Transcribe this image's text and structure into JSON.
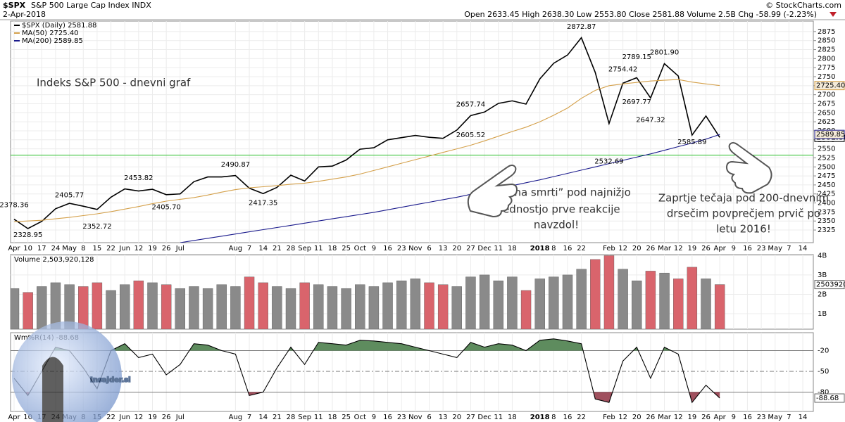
{
  "header": {
    "symbol": "$SPX",
    "name": "S&P 500 Large Cap Index INDX",
    "date": "2-Apr-2018",
    "ohlc": "Open 2633.45 High 2638.30 Low 2553.80 Close 2581.88 Volume 2.5B Chg -58.99 (-2.23%)",
    "copyright": "© StockCharts.com"
  },
  "callouts": {
    "title": "Indeks S&P 500 - dnevni graf",
    "zone": [
      "T.i “cona smrti” pod najnižjo",
      "vrednostjo prve reakcije",
      "navzdol!"
    ],
    "close": [
      "Zaprtje tečaja pod 200-dnevnim",
      "drsečim povprečjem prvič po",
      "letu 2016!"
    ]
  },
  "watermark": "Insajder.si",
  "chart_data": [
    {
      "type": "line",
      "categories": [
        "Apr",
        "10",
        "17",
        "24",
        "May",
        "8",
        "15",
        "22",
        "Jun",
        "12",
        "19",
        "26",
        "Jul",
        null,
        null,
        null,
        "Aug",
        "7",
        "14",
        "21",
        "28",
        "Sep",
        "11",
        "18",
        "25",
        "Oct",
        "9",
        "16",
        "23",
        "Nov",
        "6",
        "13",
        "20",
        "27",
        "Dec",
        "11",
        "18",
        null,
        "2018",
        "8",
        "16",
        "22",
        null,
        "Feb",
        "12",
        "20",
        "26",
        "Mar",
        "12",
        "19",
        "26",
        "Apr",
        "9",
        "16",
        "23",
        "May",
        "7",
        "14"
      ],
      "series": [
        {
          "name": "$SPX (Daily)",
          "color": "#000000",
          "values": [
            2355,
            2329,
            2349,
            2384,
            2399,
            2391,
            2382,
            2416,
            2439,
            2433,
            2438,
            2423,
            2425,
            2459,
            2472,
            2472,
            2476,
            2441,
            2426,
            2443,
            2477,
            2461,
            2500,
            2502,
            2519,
            2549,
            2553,
            2575,
            2581,
            2587,
            2582,
            2579,
            2602,
            2642,
            2652,
            2676,
            2683,
            2674,
            2744,
            2787,
            2810,
            2858,
            2762,
            2620,
            2732,
            2747,
            2691,
            2786,
            2752,
            2588,
            2641,
            2581.88,
            null,
            null,
            null,
            null,
            null,
            null
          ]
        },
        {
          "name": "MA(50)",
          "color": "#d4a04a",
          "last_label": "2725.40",
          "values": [
            2348,
            2350,
            2352,
            2356,
            2360,
            2365,
            2370,
            2376,
            2383,
            2390,
            2398,
            2405,
            2410,
            2415,
            2422,
            2430,
            2437,
            2442,
            2445,
            2448,
            2452,
            2455,
            2460,
            2466,
            2472,
            2480,
            2490,
            2500,
            2510,
            2520,
            2530,
            2540,
            2550,
            2560,
            2572,
            2585,
            2598,
            2610,
            2625,
            2643,
            2663,
            2690,
            2712,
            2725,
            2730,
            2734,
            2738,
            2740,
            2742,
            2735,
            2730,
            2725.4,
            null,
            null,
            null,
            null,
            null,
            null
          ]
        },
        {
          "name": "MA(200)",
          "color": "#1a1a8c",
          "values": [
            null,
            null,
            null,
            null,
            null,
            null,
            null,
            null,
            null,
            null,
            null,
            null,
            2290,
            2296,
            2302,
            2308,
            2314,
            2320,
            2326,
            2332,
            2338,
            2344,
            2350,
            2356,
            2362,
            2368,
            2374,
            2381,
            2388,
            2395,
            2402,
            2409,
            2416,
            2424,
            2432,
            2440,
            2448,
            2456,
            2464,
            2473,
            2482,
            2491,
            2500,
            2509,
            2518,
            2527,
            2536,
            2546,
            2556,
            2566,
            2577,
            2589.85,
            null,
            null,
            null,
            null,
            null,
            null
          ]
        }
      ],
      "ylim": [
        2290,
        2904
      ],
      "yticks": [
        2325,
        2350,
        2375,
        2400,
        2425,
        2450,
        2475,
        2500,
        2525,
        2550,
        2575,
        2600,
        2625,
        2650,
        2675,
        2700,
        2725,
        2750,
        2775,
        2800,
        2825,
        2850,
        2875
      ],
      "grid": true,
      "reference_line": {
        "value": 2532.69,
        "color": "#22bb22"
      },
      "annotations": [
        {
          "category": 0,
          "value": 2378.36
        },
        {
          "category": 1,
          "value": 2328.95
        },
        {
          "category": 4,
          "value": 2405.77
        },
        {
          "category": 6,
          "value": 2352.72
        },
        {
          "category": 9,
          "value": 2453.82
        },
        {
          "category": 11,
          "value": 2405.7,
          "label": "2405.70"
        },
        {
          "category": 16,
          "value": 2490.87
        },
        {
          "category": 18,
          "value": 2417.35
        },
        {
          "category": 33,
          "value": 2605.52
        },
        {
          "category": 33,
          "value": 2657.74
        },
        {
          "category": 41,
          "value": 2872.87
        },
        {
          "category": 43,
          "value": 2532.69
        },
        {
          "category": 44,
          "value": 2754.42
        },
        {
          "category": 45,
          "value": 2697.77
        },
        {
          "category": 45,
          "value": 2789.15
        },
        {
          "category": 46,
          "value": 2647.32
        },
        {
          "category": 47,
          "value": 2801.9,
          "label": "2801.90"
        },
        {
          "category": 49,
          "value": 2585.89
        }
      ]
    },
    {
      "type": "bar",
      "name": "Volume",
      "legend_label": "2,503,920,128",
      "axis_label": "2503920",
      "up_color": "#8a8a8a",
      "down_color": "#d9646c",
      "values": [
        2.3,
        2.1,
        2.4,
        2.6,
        2.5,
        2.4,
        2.6,
        2.2,
        2.5,
        2.7,
        2.6,
        2.5,
        2.3,
        2.4,
        2.3,
        2.5,
        2.4,
        2.9,
        2.6,
        2.4,
        2.3,
        2.6,
        2.5,
        2.4,
        2.3,
        2.5,
        2.4,
        2.6,
        2.7,
        2.8,
        2.6,
        2.5,
        2.4,
        2.9,
        3.0,
        2.7,
        2.9,
        2.2,
        2.8,
        2.9,
        3.0,
        3.3,
        3.8,
        4.0,
        3.3,
        2.7,
        3.2,
        3.1,
        2.8,
        3.4,
        2.8,
        2.503920128,
        null,
        null,
        null,
        null,
        null,
        null
      ],
      "ylim": [
        0.2,
        4.05
      ],
      "yticks": [
        {
          "value": 1,
          "label": "1B"
        },
        {
          "value": 2,
          "label": "2B"
        },
        {
          "value": 3,
          "label": "3B"
        },
        {
          "value": 4,
          "label": "4B"
        }
      ]
    },
    {
      "type": "line",
      "name": "Wm%R(14)",
      "color": "#000000",
      "high_color": "#5e8c5e",
      "low_color": "#a0505e",
      "values": [
        -60,
        -85,
        -50,
        -15,
        -20,
        -45,
        -75,
        -20,
        -10,
        -30,
        -25,
        -55,
        -40,
        -10,
        -12,
        -20,
        -25,
        -85,
        -80,
        -45,
        -15,
        -40,
        -8,
        -10,
        -12,
        -5,
        -6,
        -8,
        -10,
        -15,
        -20,
        -25,
        -30,
        -8,
        -15,
        -10,
        -12,
        -20,
        -5,
        -3,
        -6,
        -10,
        -90,
        -95,
        -35,
        -15,
        -60,
        -15,
        -25,
        -95,
        -70,
        -88.68,
        null,
        null,
        null,
        null,
        null,
        null
      ],
      "ylim": [
        -108,
        6
      ],
      "yticks": [
        -20,
        -50,
        -80
      ]
    }
  ]
}
